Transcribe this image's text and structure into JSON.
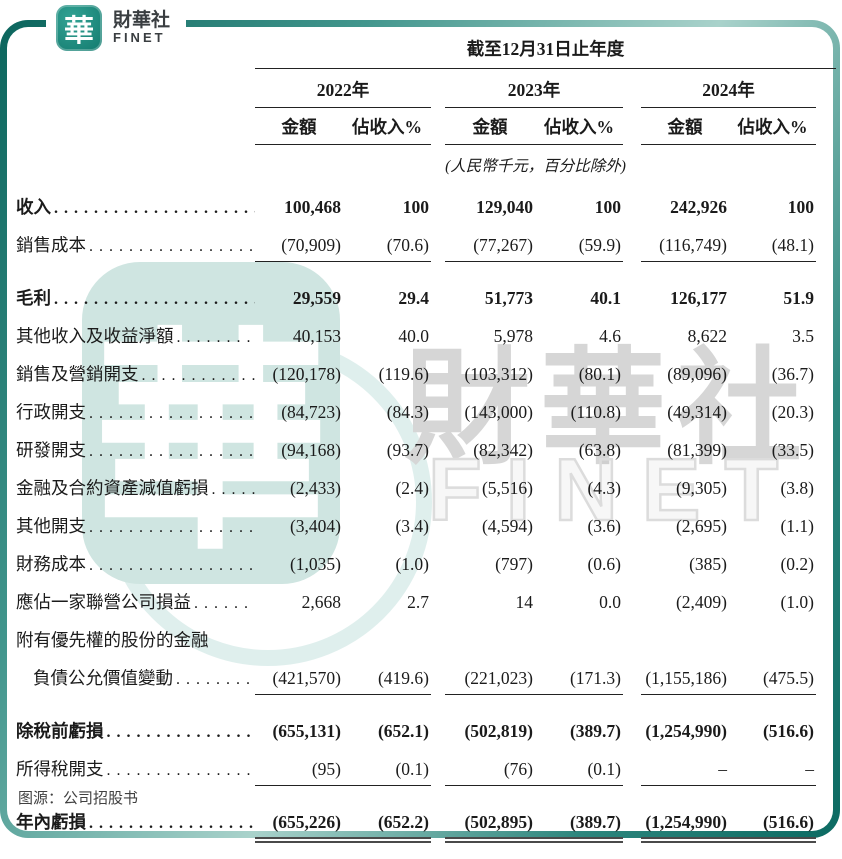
{
  "logo": {
    "seal_char": "華",
    "company_cn": "財華社",
    "company_en": "FINET"
  },
  "watermark": {
    "seal_char": "華",
    "cn": "財華社",
    "en": "FINET"
  },
  "table": {
    "period_header": "截至12月31日止年度",
    "years": [
      "2022年",
      "2023年",
      "2024年"
    ],
    "subheaders": {
      "amount": "金額",
      "pct": "佔收入%"
    },
    "unit_note": "(人民幣千元，百分比除外)",
    "rows": [
      {
        "label": "收入",
        "dots": true,
        "bold": true,
        "first": true,
        "values": [
          "100,468",
          "100",
          "129,040",
          "100",
          "242,926",
          "100"
        ]
      },
      {
        "label": "銷售成本",
        "dots": true,
        "underline": "single",
        "values": [
          "(70,909)",
          "(70.6)",
          "(77,267)",
          "(59.9)",
          "(116,749)",
          "(48.1)"
        ]
      },
      {
        "label": "毛利",
        "dots": true,
        "bold": true,
        "mt": true,
        "values": [
          "29,559",
          "29.4",
          "51,773",
          "40.1",
          "126,177",
          "51.9"
        ]
      },
      {
        "label": "其他收入及收益淨額",
        "dots": true,
        "values": [
          "40,153",
          "40.0",
          "5,978",
          "4.6",
          "8,622",
          "3.5"
        ]
      },
      {
        "label": "銷售及營銷開支",
        "dots": true,
        "values": [
          "(120,178)",
          "(119.6)",
          "(103,312)",
          "(80.1)",
          "(89,096)",
          "(36.7)"
        ]
      },
      {
        "label": "行政開支",
        "dots": true,
        "values": [
          "(84,723)",
          "(84.3)",
          "(143,000)",
          "(110.8)",
          "(49,314)",
          "(20.3)"
        ]
      },
      {
        "label": "研發開支",
        "dots": true,
        "values": [
          "(94,168)",
          "(93.7)",
          "(82,342)",
          "(63.8)",
          "(81,399)",
          "(33.5)"
        ]
      },
      {
        "label": "金融及合約資產減值虧損",
        "dots": true,
        "values": [
          "(2,433)",
          "(2.4)",
          "(5,516)",
          "(4.3)",
          "(9,305)",
          "(3.8)"
        ]
      },
      {
        "label": "其他開支",
        "dots": true,
        "values": [
          "(3,404)",
          "(3.4)",
          "(4,594)",
          "(3.6)",
          "(2,695)",
          "(1.1)"
        ]
      },
      {
        "label": "財務成本",
        "dots": true,
        "values": [
          "(1,035)",
          "(1.0)",
          "(797)",
          "(0.6)",
          "(385)",
          "(0.2)"
        ]
      },
      {
        "label": "應佔一家聯營公司損益",
        "dots": true,
        "values": [
          "2,668",
          "2.7",
          "14",
          "0.0",
          "(2,409)",
          "(1.0)"
        ]
      },
      {
        "label": "附有優先權的股份的金融",
        "dots": false,
        "values": null
      },
      {
        "label": "負債公允價值變動",
        "dots": true,
        "indent": true,
        "underline": "single",
        "values": [
          "(421,570)",
          "(419.6)",
          "(221,023)",
          "(171.3)",
          "(1,155,186)",
          "(475.5)"
        ]
      },
      {
        "label": "除稅前虧損",
        "dots": true,
        "bold": true,
        "mt": true,
        "values": [
          "(655,131)",
          "(652.1)",
          "(502,819)",
          "(389.7)",
          "(1,254,990)",
          "(516.6)"
        ]
      },
      {
        "label": "所得稅開支",
        "dots": true,
        "underline": "single",
        "values": [
          "(95)",
          "(0.1)",
          "(76)",
          "(0.1)",
          "–",
          "–"
        ]
      },
      {
        "label": "年內虧損",
        "dots": true,
        "bold": true,
        "mt": true,
        "underline": "double",
        "values": [
          "(655,226)",
          "(652.2)",
          "(502,895)",
          "(389.7)",
          "(1,254,990)",
          "(516.6)"
        ]
      }
    ]
  },
  "footer": {
    "source": "图源：公司招股书"
  },
  "colors": {
    "brand_teal": "#127a6e",
    "frame_gradient_dark": "#0b655d",
    "frame_gradient_light": "#a9d2cb",
    "text": "#1b1b1b",
    "watermark_teal": "#cfe5e1",
    "watermark_gray": "#d6d6d6",
    "source_text": "#414141"
  }
}
